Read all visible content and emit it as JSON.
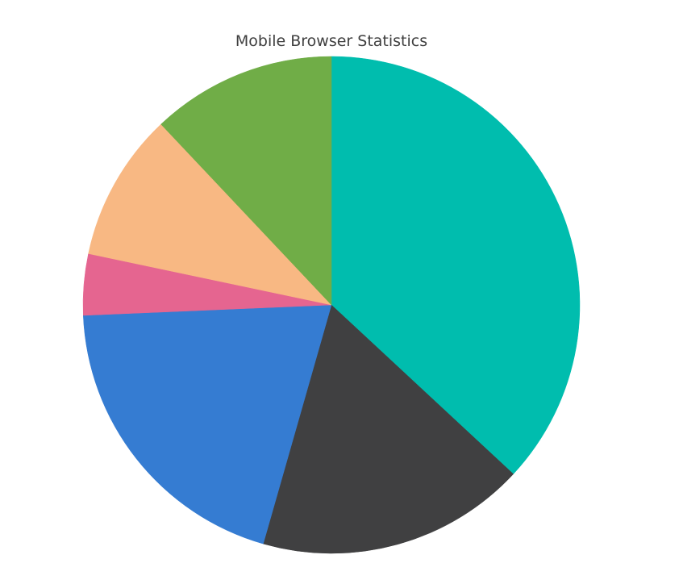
{
  "chart_data": {
    "type": "pie",
    "title": "Mobile Browser Statistics",
    "slices": [
      {
        "value": 37.1,
        "color": "#00bdae"
      },
      {
        "value": 17.6,
        "color": "#404041"
      },
      {
        "value": 20.0,
        "color": "#357cd2"
      },
      {
        "value": 4.0,
        "color": "#e56590"
      },
      {
        "value": 9.7,
        "color": "#f8b883"
      },
      {
        "value": 12.1,
        "color": "#70ad47"
      }
    ],
    "legend": "none",
    "data_labels": "none"
  }
}
